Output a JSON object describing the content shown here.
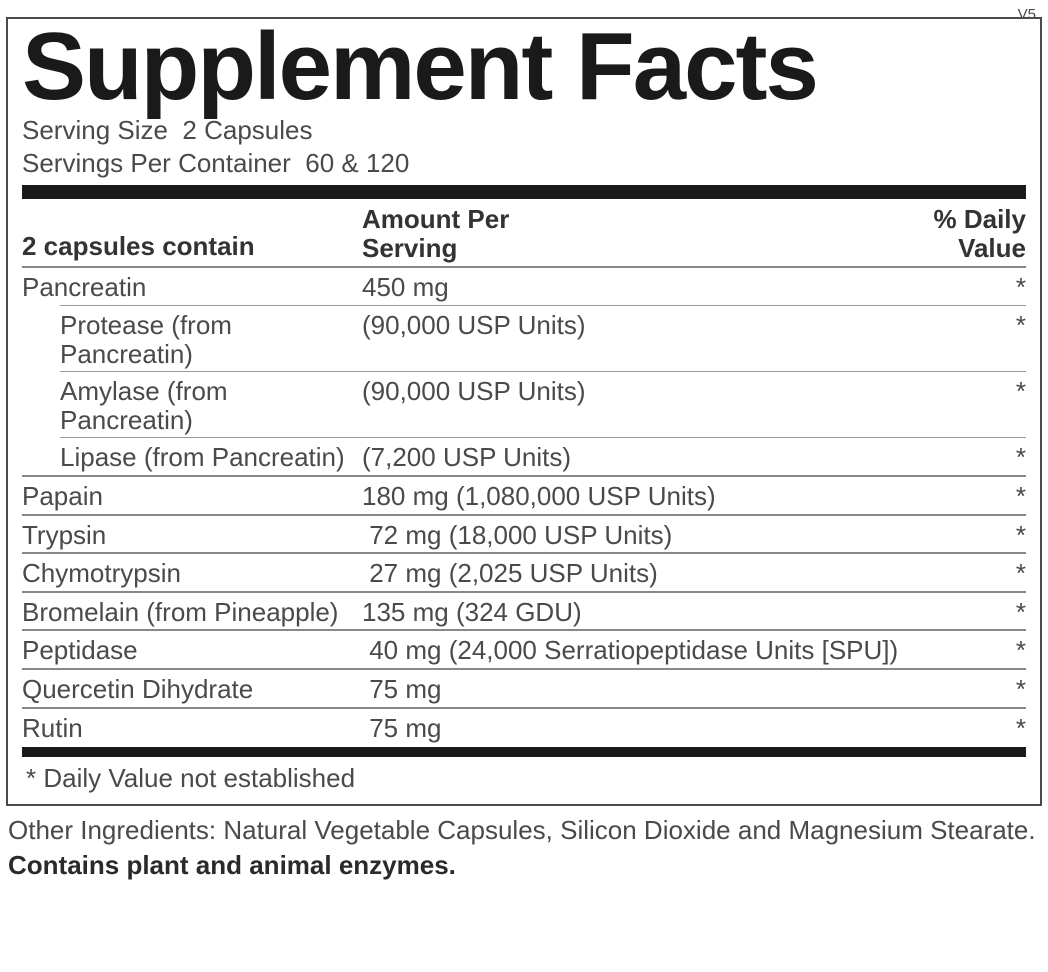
{
  "version": "V5",
  "title": "Supplement Facts",
  "serving_size_label": "Serving Size",
  "serving_size_value": "2 Capsules",
  "servings_per_container_label": "Servings Per Container",
  "servings_per_container_value": "60 & 120",
  "header": {
    "col1": "2 capsules contain",
    "col2_line1": "Amount Per",
    "col2_line2": "Serving",
    "col3_line1": "% Daily",
    "col3_line2": "Value"
  },
  "rows": {
    "pancreatin": {
      "name": "Pancreatin",
      "amount": "450 mg",
      "dv": "*"
    },
    "protease": {
      "name": "Protease (from Pancreatin)",
      "amount": "(90,000 USP Units)",
      "dv": "*"
    },
    "amylase": {
      "name": "Amylase (from Pancreatin)",
      "amount": "(90,000 USP Units)",
      "dv": "*"
    },
    "lipase": {
      "name": "Lipase (from Pancreatin)",
      "amount": "(7,200 USP Units)",
      "dv": "*"
    },
    "papain": {
      "name": "Papain",
      "amount": "180 mg (1,080,000 USP Units)",
      "dv": "*"
    },
    "trypsin": {
      "name": "Trypsin",
      "amount": " 72 mg (18,000 USP Units)",
      "dv": "*"
    },
    "chymotrypsin": {
      "name": "Chymotrypsin",
      "amount": " 27 mg (2,025 USP Units)",
      "dv": "*"
    },
    "bromelain": {
      "name": "Bromelain (from Pineapple)",
      "amount": "135 mg (324 GDU)",
      "dv": "*"
    },
    "peptidase": {
      "name": "Peptidase",
      "amount": " 40 mg (24,000 Serratiopeptidase Units [SPU])",
      "dv": "*"
    },
    "quercetin": {
      "name": "Quercetin Dihydrate",
      "amount": " 75 mg",
      "dv": "*"
    },
    "rutin": {
      "name": "Rutin",
      "amount": " 75 mg",
      "dv": "*"
    }
  },
  "footnote": "* Daily Value not established",
  "other_ingredients": "Other Ingredients: Natural Vegetable Capsules, Silicon Dioxide and Magnesium Stearate.",
  "contains": "Contains plant and animal enzymes.",
  "colors": {
    "text": "#4a4a4a",
    "title": "#1a1a1a",
    "rule": "#888888",
    "background": "#ffffff"
  },
  "typography": {
    "title_fontsize": 96,
    "body_fontsize": 26,
    "font_family": "Arial"
  }
}
